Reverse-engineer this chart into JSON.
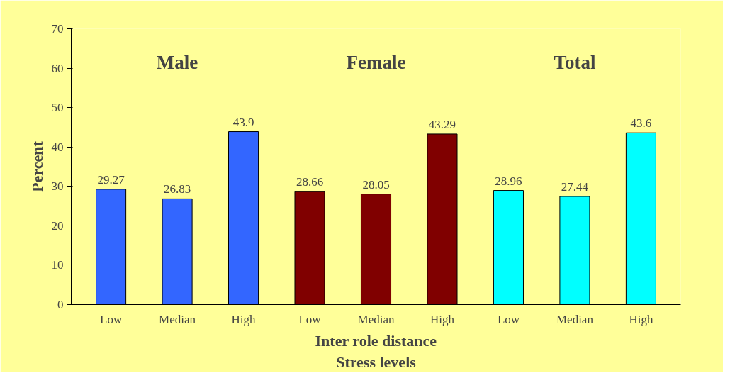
{
  "chart_data": {
    "type": "bar",
    "ylabel": "Percent",
    "xlabel": "Inter role distance\nStress levels",
    "categories": [
      "Low",
      "Median",
      "High",
      "Low",
      "Median",
      "High",
      "Low",
      "Median",
      "High"
    ],
    "values": [
      29.27,
      26.83,
      43.9,
      28.66,
      28.05,
      43.29,
      28.96,
      27.44,
      43.6
    ],
    "colors": [
      "#3366ff",
      "#3366ff",
      "#3366ff",
      "#800000",
      "#800000",
      "#800000",
      "#00ffff",
      "#00ffff",
      "#00ffff"
    ],
    "ylim": [
      0,
      70
    ],
    "yticks": [
      0,
      10,
      20,
      30,
      40,
      50,
      60,
      70
    ],
    "grid": false,
    "data_labels": true,
    "annotations": [
      "Male",
      "Female",
      "Total"
    ]
  }
}
